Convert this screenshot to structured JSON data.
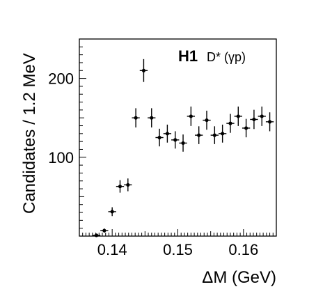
{
  "chart_data": {
    "type": "scatter",
    "experiment_label": "H1",
    "process_label": "D* (γp)",
    "xlabel": "ΔM   (GeV)",
    "ylabel": "Candidates / 1.2 MeV",
    "xlim": [
      0.135,
      0.165
    ],
    "ylim": [
      0,
      250
    ],
    "x_ticks": [
      0.14,
      0.15,
      0.16
    ],
    "x_tick_labels": [
      "0.14",
      "0.15",
      "0.16"
    ],
    "y_ticks": [
      100,
      200
    ],
    "y_tick_labels": [
      "100",
      "200"
    ],
    "bin_width": 0.0012,
    "series": [
      {
        "x": [
          0.1376,
          0.1388,
          0.14,
          0.1412,
          0.1424,
          0.1436,
          0.1448,
          0.146,
          0.1472,
          0.1484,
          0.1496,
          0.1508,
          0.152,
          0.1532,
          0.1544,
          0.1556,
          0.1568,
          0.158,
          0.1592,
          0.1604,
          0.1616,
          0.1628,
          0.164
        ],
        "y": [
          1,
          7,
          31,
          63,
          65,
          150,
          210,
          150,
          125,
          130,
          122,
          118,
          152,
          128,
          147,
          128,
          130,
          143,
          152,
          137,
          148,
          152,
          145
        ],
        "yerr": [
          1,
          2.6,
          5.6,
          7.9,
          8.1,
          12.2,
          14.5,
          12.2,
          11.2,
          11.4,
          11.0,
          10.9,
          12.3,
          11.3,
          12.1,
          11.3,
          11.4,
          12.0,
          12.3,
          11.7,
          12.2,
          12.3,
          12.0
        ]
      }
    ]
  }
}
